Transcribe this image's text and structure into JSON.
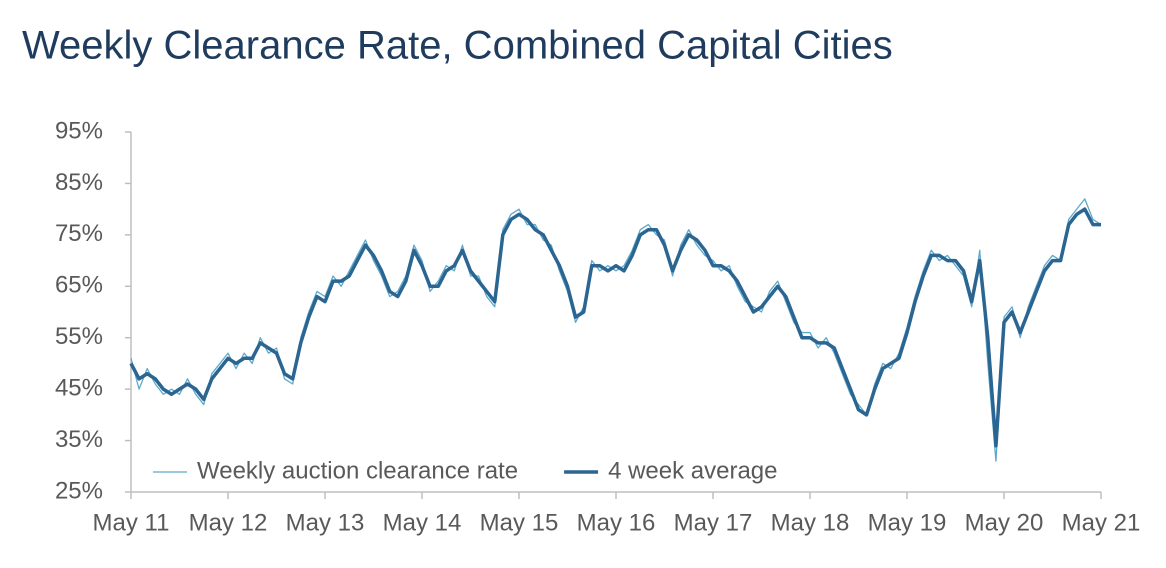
{
  "chart_data": {
    "type": "line",
    "title": "Weekly Clearance Rate, Combined Capital Cities",
    "x": [
      2011,
      2011.083,
      2011.167,
      2011.25,
      2011.333,
      2011.417,
      2011.5,
      2011.583,
      2011.667,
      2011.75,
      2011.833,
      2011.917,
      2012,
      2012.083,
      2012.167,
      2012.25,
      2012.333,
      2012.417,
      2012.5,
      2012.583,
      2012.667,
      2012.75,
      2012.833,
      2012.917,
      2013,
      2013.083,
      2013.167,
      2013.25,
      2013.333,
      2013.417,
      2013.5,
      2013.583,
      2013.667,
      2013.75,
      2013.833,
      2013.917,
      2014,
      2014.083,
      2014.167,
      2014.25,
      2014.333,
      2014.417,
      2014.5,
      2014.583,
      2014.667,
      2014.75,
      2014.833,
      2014.917,
      2015,
      2015.083,
      2015.167,
      2015.25,
      2015.333,
      2015.417,
      2015.5,
      2015.583,
      2015.667,
      2015.75,
      2015.833,
      2015.917,
      2016,
      2016.083,
      2016.167,
      2016.25,
      2016.333,
      2016.417,
      2016.5,
      2016.583,
      2016.667,
      2016.75,
      2016.833,
      2016.917,
      2017,
      2017.083,
      2017.167,
      2017.25,
      2017.333,
      2017.417,
      2017.5,
      2017.583,
      2017.667,
      2017.75,
      2017.833,
      2017.917,
      2018,
      2018.083,
      2018.167,
      2018.25,
      2018.333,
      2018.417,
      2018.5,
      2018.583,
      2018.667,
      2018.75,
      2018.833,
      2018.917,
      2019,
      2019.083,
      2019.167,
      2019.25,
      2019.333,
      2019.417,
      2019.5,
      2019.583,
      2019.667,
      2019.75,
      2019.833,
      2019.917,
      2020,
      2020.083,
      2020.167,
      2020.25,
      2020.333,
      2020.417,
      2020.5,
      2020.583,
      2020.667,
      2020.75,
      2020.833,
      2020.917,
      2021
    ],
    "series": [
      {
        "name": "Weekly auction clearance rate",
        "color": "#5ea9cb",
        "width": 1.3,
        "values": [
          51,
          45,
          49,
          46,
          44,
          45,
          44,
          47,
          44,
          42,
          48,
          50,
          52,
          49,
          52,
          50,
          55,
          52,
          53,
          47,
          46,
          55,
          60,
          64,
          63,
          67,
          65,
          68,
          71,
          74,
          70,
          67,
          63,
          64,
          67,
          73,
          70,
          64,
          66,
          69,
          68,
          73,
          67,
          67,
          63,
          61,
          76,
          79,
          80,
          77,
          77,
          74,
          73,
          68,
          64,
          58,
          61,
          70,
          68,
          69,
          68,
          69,
          72,
          76,
          77,
          75,
          74,
          67,
          73,
          76,
          73,
          71,
          70,
          68,
          69,
          65,
          62,
          61,
          60,
          64,
          66,
          62,
          58,
          56,
          56,
          53,
          55,
          52,
          48,
          44,
          42,
          40,
          46,
          50,
          49,
          52,
          57,
          63,
          68,
          72,
          70,
          71,
          69,
          67,
          61,
          72,
          50,
          31,
          59,
          61,
          55,
          61,
          65,
          69,
          71,
          70,
          78,
          80,
          82,
          78,
          77
        ]
      },
      {
        "name": "4 week average",
        "color": "#2b6592",
        "width": 3.5,
        "values": [
          50,
          47,
          48,
          47,
          45,
          44,
          45,
          46,
          45,
          43,
          47,
          49,
          51,
          50,
          51,
          51,
          54,
          53,
          52,
          48,
          47,
          54,
          59,
          63,
          62,
          66,
          66,
          67,
          70,
          73,
          71,
          68,
          64,
          63,
          66,
          72,
          69,
          65,
          65,
          68,
          69,
          72,
          68,
          66,
          64,
          62,
          75,
          78,
          79,
          78,
          76,
          75,
          72,
          69,
          65,
          59,
          60,
          69,
          69,
          68,
          69,
          68,
          71,
          75,
          76,
          76,
          73,
          68,
          72,
          75,
          74,
          72,
          69,
          69,
          68,
          66,
          63,
          60,
          61,
          63,
          65,
          63,
          59,
          55,
          55,
          54,
          54,
          53,
          49,
          45,
          41,
          40,
          45,
          49,
          50,
          51,
          56,
          62,
          67,
          71,
          71,
          70,
          70,
          68,
          62,
          70,
          55,
          34,
          58,
          60,
          56,
          60,
          64,
          68,
          70,
          70,
          77,
          79,
          80,
          77,
          77
        ]
      }
    ],
    "xlim": [
      2011,
      2021
    ],
    "xticks": [
      {
        "value": 2011,
        "label": "May 11"
      },
      {
        "value": 2012,
        "label": "May 12"
      },
      {
        "value": 2013,
        "label": "May 13"
      },
      {
        "value": 2014,
        "label": "May 14"
      },
      {
        "value": 2015,
        "label": "May 15"
      },
      {
        "value": 2016,
        "label": "May 16"
      },
      {
        "value": 2017,
        "label": "May 17"
      },
      {
        "value": 2018,
        "label": "May 18"
      },
      {
        "value": 2019,
        "label": "May 19"
      },
      {
        "value": 2020,
        "label": "May 20"
      },
      {
        "value": 2021,
        "label": "May 21"
      }
    ],
    "ylim": [
      25,
      95
    ],
    "yticks": [
      {
        "value": 25,
        "label": "25%"
      },
      {
        "value": 35,
        "label": "35%"
      },
      {
        "value": 45,
        "label": "45%"
      },
      {
        "value": 55,
        "label": "55%"
      },
      {
        "value": 65,
        "label": "65%"
      },
      {
        "value": 75,
        "label": "75%"
      },
      {
        "value": 85,
        "label": "85%"
      },
      {
        "value": 95,
        "label": "95%"
      }
    ],
    "grid": false,
    "legend": "lower left"
  }
}
